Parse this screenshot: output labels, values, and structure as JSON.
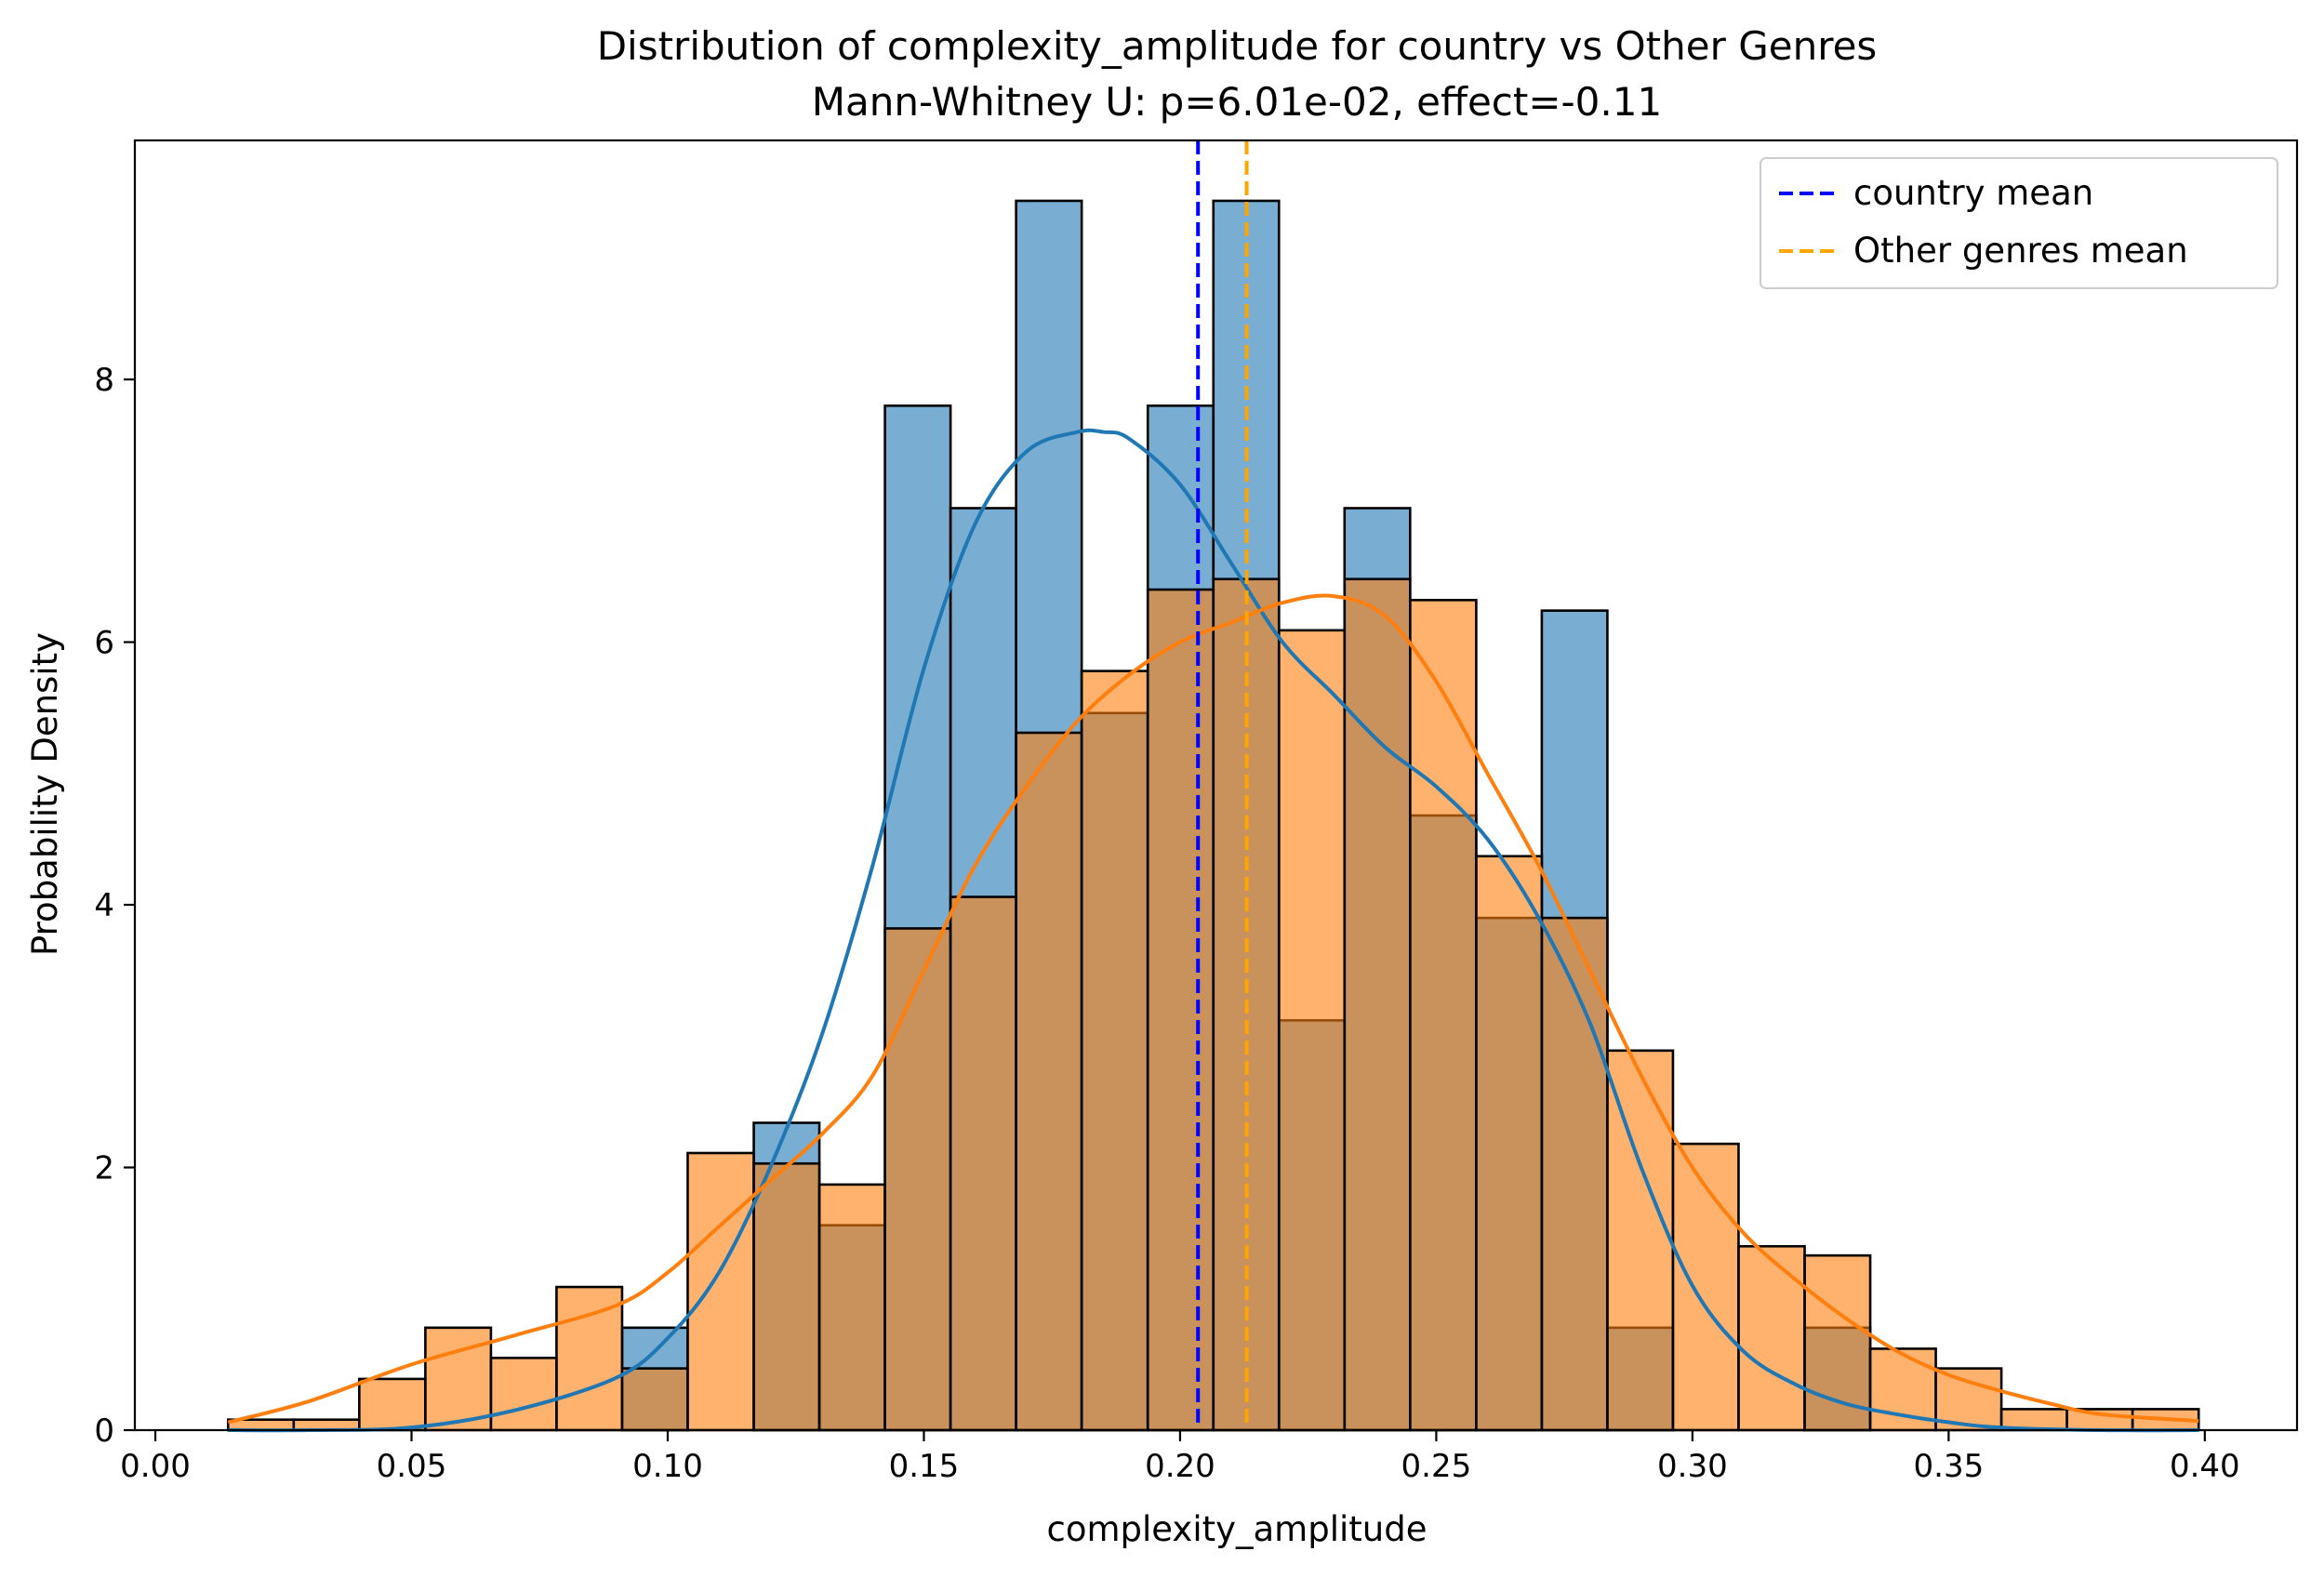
{
  "chart_data": {
    "type": "histogram",
    "title": "Distribution of complexity_amplitude for country vs Other Genres",
    "subtitle": "Mann-Whitney U: p=6.01e-02, effect=-0.11",
    "xlabel": "complexity_amplitude",
    "ylabel": "Probability Density",
    "xlim": [
      -0.004,
      0.418
    ],
    "ylim": [
      0,
      9.82
    ],
    "xticks": [
      0.0,
      0.05,
      0.1,
      0.15,
      0.2,
      0.25,
      0.3,
      0.35,
      0.4
    ],
    "xtick_labels": [
      "0.00",
      "0.05",
      "0.10",
      "0.15",
      "0.20",
      "0.25",
      "0.30",
      "0.35",
      "0.40"
    ],
    "yticks": [
      0,
      2,
      4,
      6,
      8
    ],
    "ytick_labels": [
      "0",
      "2",
      "4",
      "6",
      "8"
    ],
    "grid": false,
    "legend_position": "top-right",
    "bin_edges": [
      0.0142,
      0.027,
      0.0398,
      0.0527,
      0.0655,
      0.0783,
      0.0911,
      0.1039,
      0.1168,
      0.1296,
      0.1424,
      0.1552,
      0.168,
      0.1808,
      0.1937,
      0.2065,
      0.2193,
      0.2321,
      0.2449,
      0.2578,
      0.2706,
      0.2834,
      0.2962,
      0.309,
      0.3219,
      0.3347,
      0.3475,
      0.3603,
      0.3731,
      0.3859,
      0.3988
    ],
    "series": [
      {
        "name": "country",
        "color": "#1f77b4",
        "density": [
          0,
          0,
          0,
          0,
          0,
          0,
          0.78,
          0,
          2.34,
          1.56,
          7.8,
          7.02,
          9.36,
          5.46,
          7.8,
          9.36,
          3.12,
          7.02,
          4.68,
          3.9,
          6.24,
          0.78,
          0,
          0,
          0.78,
          0,
          0,
          0,
          0,
          0
        ],
        "kde_x": [
          0.0142,
          0.03,
          0.05,
          0.07,
          0.09,
          0.1,
          0.11,
          0.12,
          0.13,
          0.14,
          0.15,
          0.16,
          0.17,
          0.18,
          0.185,
          0.19,
          0.2,
          0.21,
          0.22,
          0.23,
          0.24,
          0.25,
          0.26,
          0.27,
          0.28,
          0.29,
          0.3,
          0.31,
          0.32,
          0.33,
          0.34,
          0.35,
          0.36,
          0.38,
          0.3988
        ],
        "kde_y": [
          0,
          0,
          0.02,
          0.15,
          0.4,
          0.7,
          1.2,
          2.0,
          3.0,
          4.3,
          5.8,
          6.9,
          7.45,
          7.6,
          7.6,
          7.55,
          7.2,
          6.6,
          6.0,
          5.6,
          5.2,
          4.9,
          4.5,
          3.9,
          3.1,
          2.0,
          1.1,
          0.6,
          0.35,
          0.2,
          0.12,
          0.06,
          0.02,
          0,
          0
        ]
      },
      {
        "name": "Other genres",
        "color": "#ff7f0e",
        "density": [
          0.08,
          0.08,
          0.39,
          0.78,
          0.55,
          1.09,
          0.47,
          2.11,
          2.03,
          1.87,
          3.82,
          4.06,
          5.31,
          5.78,
          6.4,
          6.48,
          6.09,
          6.48,
          6.32,
          4.37,
          3.9,
          2.89,
          2.18,
          1.4,
          1.33,
          0.62,
          0.47,
          0.16,
          0.16,
          0.16
        ],
        "kde_x": [
          0.0142,
          0.03,
          0.05,
          0.07,
          0.09,
          0.1,
          0.11,
          0.12,
          0.13,
          0.14,
          0.15,
          0.16,
          0.17,
          0.18,
          0.19,
          0.2,
          0.21,
          0.22,
          0.23,
          0.24,
          0.25,
          0.26,
          0.27,
          0.28,
          0.29,
          0.3,
          0.31,
          0.32,
          0.33,
          0.34,
          0.35,
          0.36,
          0.37,
          0.38,
          0.3988
        ],
        "kde_y": [
          0.06,
          0.22,
          0.5,
          0.72,
          0.95,
          1.2,
          1.55,
          1.9,
          2.25,
          2.7,
          3.5,
          4.3,
          4.9,
          5.4,
          5.75,
          6.0,
          6.15,
          6.3,
          6.35,
          6.2,
          5.7,
          5.0,
          4.3,
          3.5,
          2.7,
          2.0,
          1.5,
          1.15,
          0.85,
          0.6,
          0.42,
          0.3,
          0.2,
          0.12,
          0.07
        ]
      }
    ],
    "mean_lines": [
      {
        "label": "country mean",
        "value": 0.2035,
        "color": "#0000ff"
      },
      {
        "label": "Other genres mean",
        "value": 0.213,
        "color": "#ffa500"
      }
    ]
  }
}
